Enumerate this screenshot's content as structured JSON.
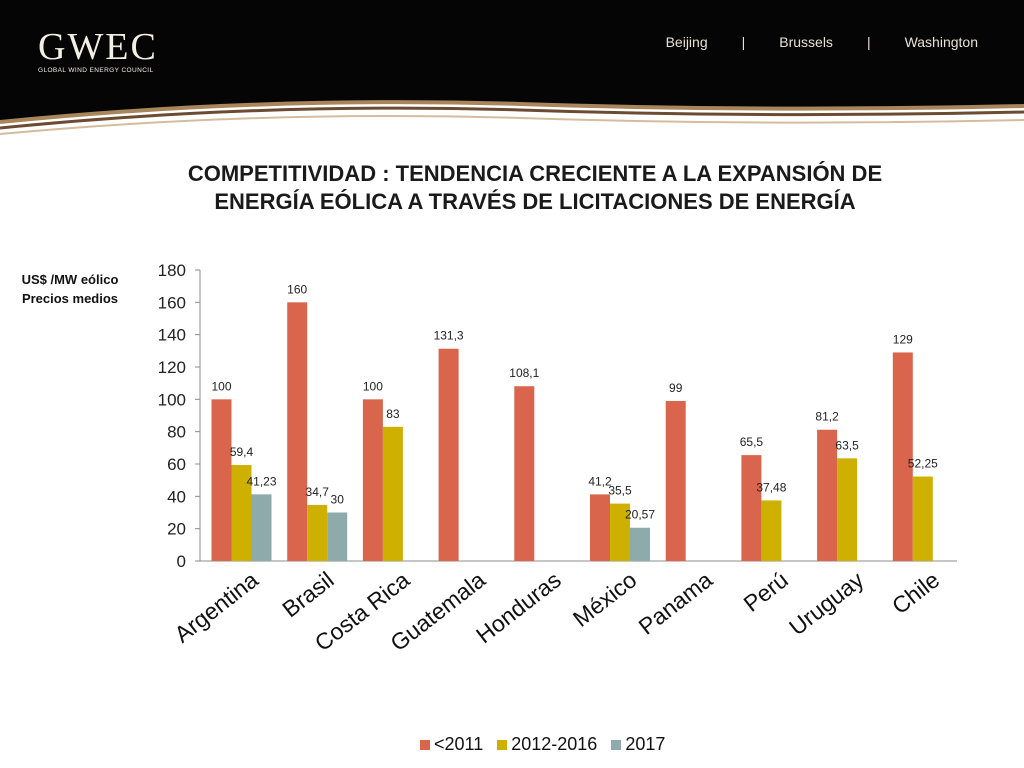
{
  "header": {
    "logo_text": "GWEC",
    "logo_subtitle": "GLOBAL WIND ENERGY COUNCIL",
    "nav": [
      "Beijing",
      "Brussels",
      "Washington"
    ],
    "nav_separator": "|"
  },
  "title_lines": [
    "COMPETITIVIDAD : TENDENCIA CRECIENTE A LA EXPANSIÓN DE",
    "ENERGÍA EÓLICA A TRAVÉS DE LICITACIONES DE ENERGÍA"
  ],
  "ylabel_lines": [
    "US$ /MW eólico",
    "Precios medios"
  ],
  "chart_data": {
    "type": "bar",
    "categories": [
      "Argentina",
      "Brasil",
      "Costa Rica",
      "Guatemala",
      "Honduras",
      "México",
      "Panama",
      "Perú",
      "Uruguay",
      "Chile"
    ],
    "series": [
      {
        "name": "<2011",
        "color": "#d9654c",
        "values": [
          100,
          160,
          100,
          131.3,
          108.1,
          41.2,
          99,
          65.5,
          81.2,
          129
        ],
        "labels": [
          "100",
          "160",
          "100",
          "131,3",
          "108,1",
          "41,2",
          "99",
          "65,5",
          "81,2",
          "129"
        ]
      },
      {
        "name": "2012-2016",
        "color": "#cdb000",
        "values": [
          59.4,
          34.7,
          83,
          null,
          null,
          35.5,
          null,
          37.48,
          63.5,
          52.25
        ],
        "labels": [
          "59,4",
          "34,7",
          "83",
          null,
          null,
          "35,5",
          null,
          "37,48",
          "63,5",
          "52,25"
        ]
      },
      {
        "name": "2017",
        "color": "#8faaaa",
        "values": [
          41.23,
          30,
          null,
          null,
          null,
          20.57,
          null,
          null,
          null,
          null
        ],
        "labels": [
          "41,23",
          "30",
          null,
          null,
          null,
          "20,57",
          null,
          null,
          null,
          null
        ]
      }
    ],
    "y_ticks": [
      "0",
      "20",
      "40",
      "60",
      "80",
      "100",
      "120",
      "140",
      "160",
      "180"
    ],
    "ylim": [
      0,
      180
    ],
    "grid": false,
    "legend_position": "bottom"
  }
}
